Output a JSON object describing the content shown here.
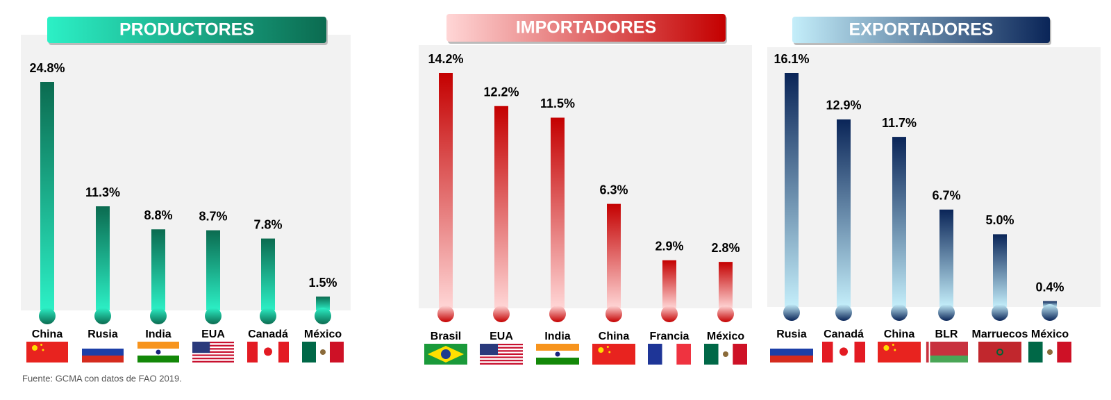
{
  "chart_data": [
    {
      "type": "bar",
      "title": "PRODUCTORES",
      "categories": [
        "China",
        "Rusia",
        "India",
        "EUA",
        "Canadá",
        "México"
      ],
      "values": [
        24.8,
        11.3,
        8.8,
        8.7,
        7.8,
        1.5
      ],
      "value_labels": [
        "24.8%",
        "11.3%",
        "8.8%",
        "8.7%",
        "7.8%",
        "1.5%"
      ],
      "gradient": [
        "#0b6b50",
        "#2cf0c6"
      ]
    },
    {
      "type": "bar",
      "title": "IMPORTADORES",
      "categories": [
        "Brasil",
        "EUA",
        "India",
        "China",
        "Francia",
        "México"
      ],
      "values": [
        14.2,
        12.2,
        11.5,
        6.3,
        2.9,
        2.8
      ],
      "value_labels": [
        "14.2%",
        "12.2%",
        "11.5%",
        "6.3%",
        "2.9%",
        "2.8%"
      ],
      "gradient": [
        "#c40000",
        "#ffd6d6"
      ]
    },
    {
      "type": "bar",
      "title": "EXPORTADORES",
      "categories": [
        "Rusia",
        "Canadá",
        "China",
        "BLR",
        "Marruecos",
        "México"
      ],
      "values": [
        16.1,
        12.9,
        11.7,
        6.7,
        5.0,
        0.4
      ],
      "value_labels": [
        "16.1%",
        "12.9%",
        "11.7%",
        "6.7%",
        "5.0%",
        "0.4%"
      ],
      "gradient": [
        "#0a2558",
        "#c4eefa"
      ]
    }
  ],
  "source": "Fuente: GCMA con datos de FAO 2019."
}
